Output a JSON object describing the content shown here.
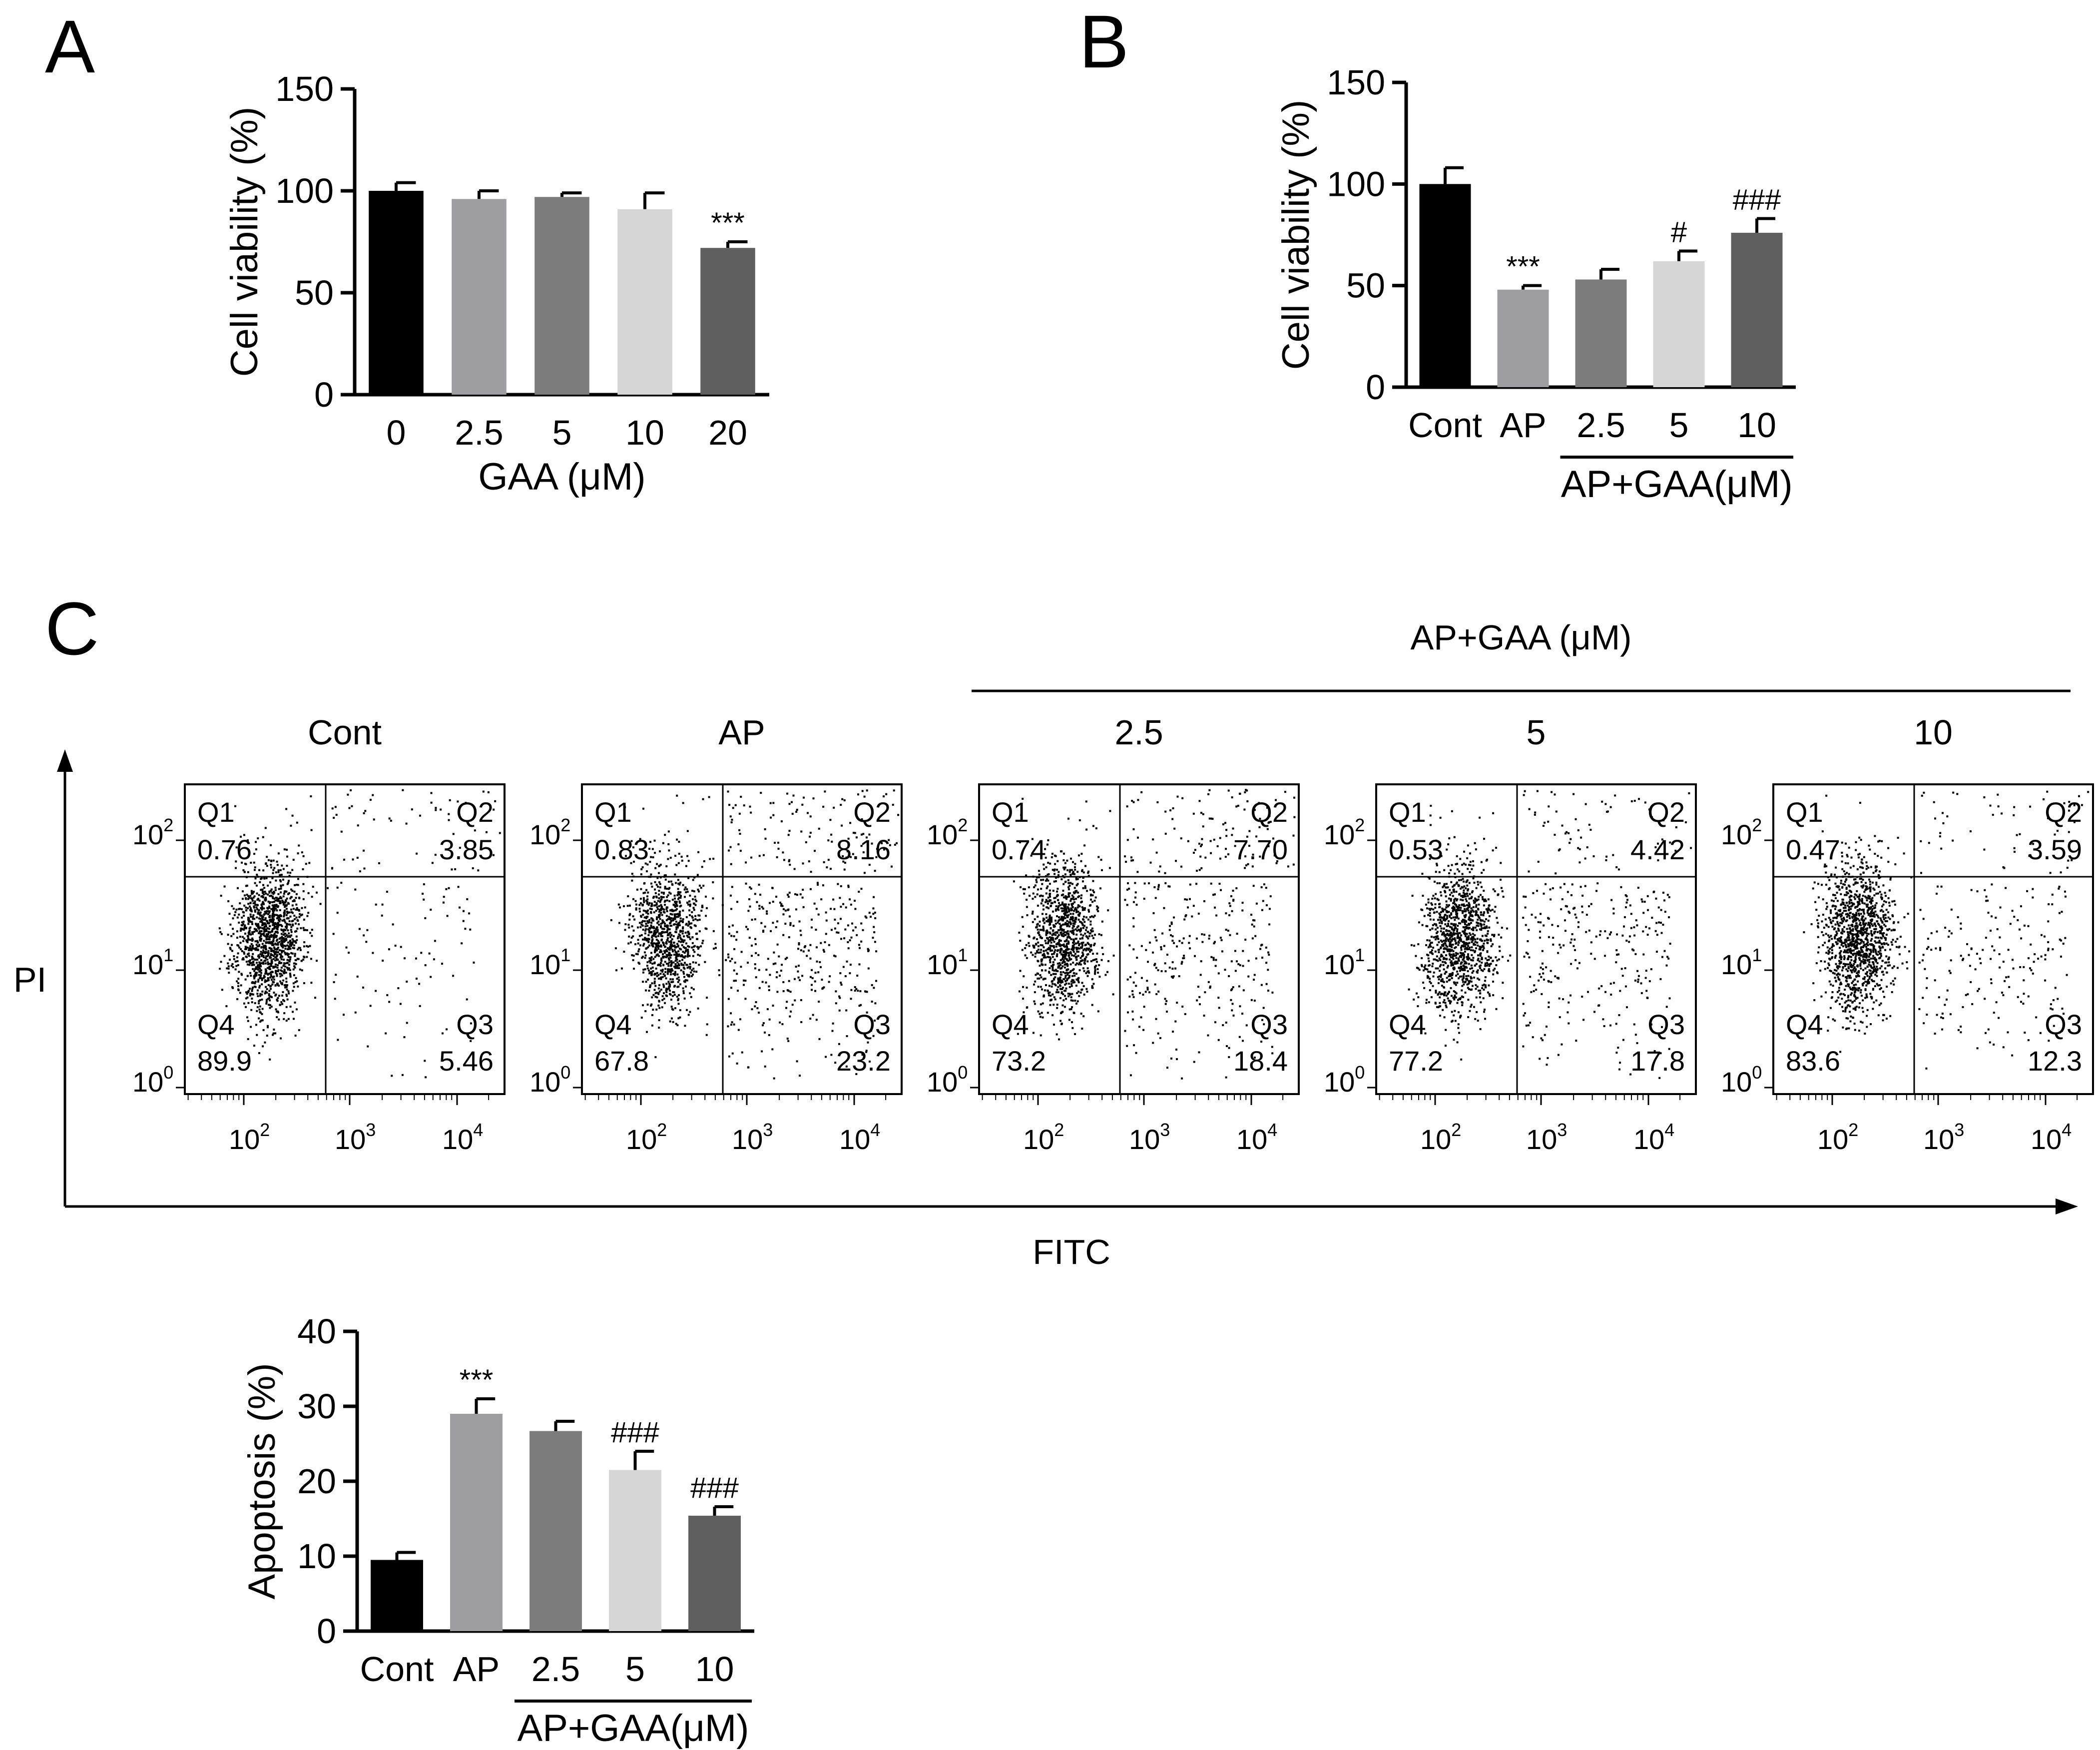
{
  "colors": {
    "black": "#000000",
    "gray1": "#9e9ea1",
    "gray2": "#7c7c7c",
    "gray3": "#d6d6d6",
    "gray4": "#5f5f5f"
  },
  "panels": {
    "a": {
      "label": "A"
    },
    "b": {
      "label": "B"
    },
    "c": {
      "label": "C"
    }
  },
  "chart_data": [
    {
      "id": "A",
      "type": "bar",
      "title": "",
      "ylabel": "Cell viability (%)",
      "xlabel": "GAA (μM)",
      "group_label": "",
      "ylim": [
        0,
        150
      ],
      "yticks": [
        0,
        50,
        100,
        150
      ],
      "categories": [
        "0",
        "2.5",
        "5",
        "10",
        "20"
      ],
      "values": [
        100,
        96,
        97,
        91,
        72
      ],
      "errors": [
        4,
        4,
        2,
        8,
        3
      ],
      "significance": [
        "",
        "",
        "",
        "",
        "***"
      ],
      "bar_colors": [
        "#000000",
        "#9e9ea1",
        "#7c7c7c",
        "#d6d6d6",
        "#5f5f5f"
      ]
    },
    {
      "id": "B",
      "type": "bar",
      "title": "",
      "ylabel": "Cell viability (%)",
      "xlabel": "",
      "group_label": "AP+GAA(μM)",
      "ylim": [
        0,
        150
      ],
      "yticks": [
        0,
        50,
        100,
        150
      ],
      "categories": [
        "Cont",
        "AP",
        "2.5",
        "5",
        "10"
      ],
      "values": [
        100,
        48,
        53,
        62,
        76
      ],
      "errors": [
        8,
        2,
        5,
        5,
        7
      ],
      "significance": [
        "",
        "***",
        "",
        "#",
        "###"
      ],
      "bar_colors": [
        "#000000",
        "#9e9ea1",
        "#7c7c7c",
        "#d6d6d6",
        "#5f5f5f"
      ]
    },
    {
      "id": "C-bar",
      "type": "bar",
      "title": "",
      "ylabel": "Apoptosis (%)",
      "xlabel": "",
      "group_label": "AP+GAA(μM)",
      "ylim": [
        0,
        40
      ],
      "yticks": [
        0,
        10,
        20,
        30,
        40
      ],
      "categories": [
        "Cont",
        "AP",
        "2.5",
        "5",
        "10"
      ],
      "values": [
        9.5,
        29,
        26.7,
        21.5,
        15.4
      ],
      "errors": [
        1,
        2,
        1.3,
        2.5,
        1.2
      ],
      "significance": [
        "",
        "***",
        "",
        "###",
        "###"
      ],
      "bar_colors": [
        "#000000",
        "#9e9ea1",
        "#7c7c7c",
        "#d6d6d6",
        "#5f5f5f"
      ]
    },
    {
      "id": "C-flow",
      "type": "scatter",
      "title": "AP+GAA (μM)",
      "ylabel": "PI",
      "xlabel": "FITC",
      "x_ticks": [
        "10",
        "10",
        "10"
      ],
      "x_tick_exponents": [
        "2",
        "3",
        "4"
      ],
      "y_ticks": [
        "10",
        "10",
        "10"
      ],
      "y_tick_exponents": [
        "0",
        "1",
        "2"
      ],
      "quadrant_labels": [
        "Q1",
        "Q2",
        "Q3",
        "Q4"
      ],
      "plots": [
        {
          "name": "Cont",
          "Q1": "0.76",
          "Q2": "3.85",
          "Q3": "5.46",
          "Q4": "89.9"
        },
        {
          "name": "AP",
          "Q1": "0.83",
          "Q2": "8.16",
          "Q3": "23.2",
          "Q4": "67.8"
        },
        {
          "name": "2.5",
          "Q1": "0.74",
          "Q2": "7.70",
          "Q3": "18.4",
          "Q4": "73.2"
        },
        {
          "name": "5",
          "Q1": "0.53",
          "Q2": "4.42",
          "Q3": "17.8",
          "Q4": "77.2"
        },
        {
          "name": "10",
          "Q1": "0.47",
          "Q2": "3.59",
          "Q3": "12.3",
          "Q4": "83.6"
        }
      ]
    }
  ]
}
